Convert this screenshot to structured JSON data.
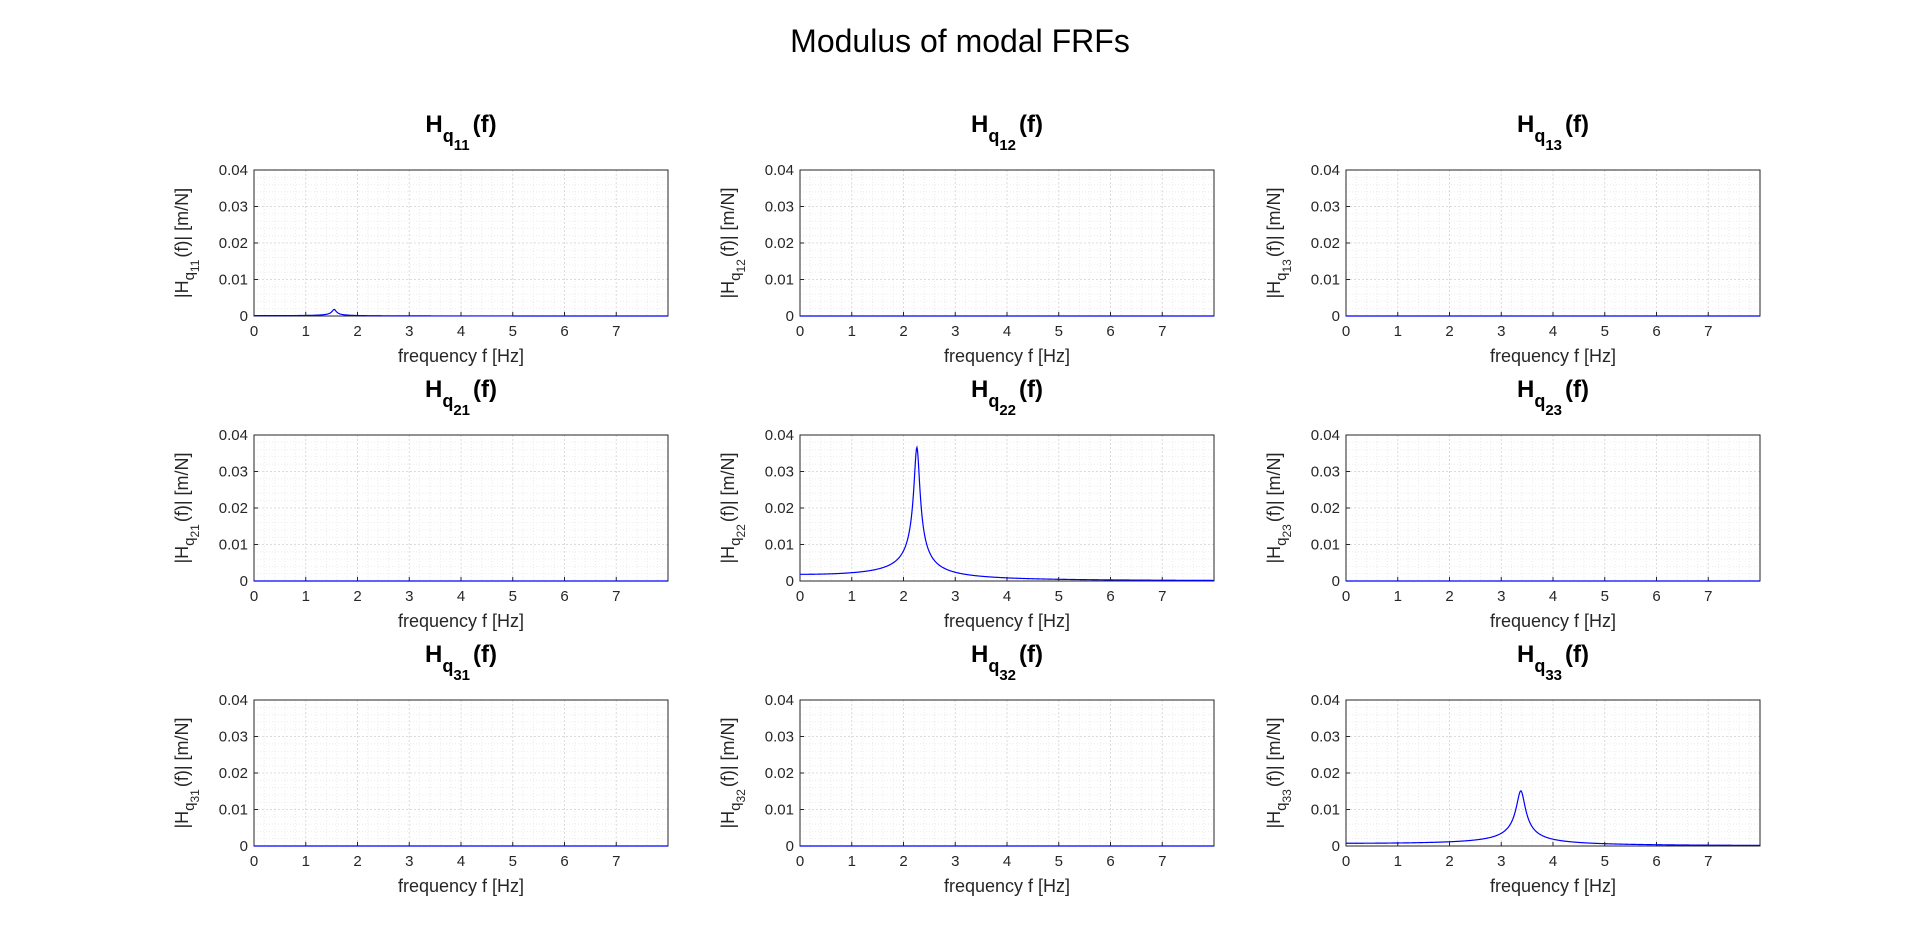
{
  "figure_title": "Modulus of modal FRFs",
  "chart_data": {
    "type": "line",
    "layout": "3x3 grid of subplots",
    "line_color": "#0000ff",
    "grid": "major and minor",
    "subplots": [
      {
        "id": "11",
        "title_main": "H",
        "title_sub1": "q",
        "title_sub2": "11",
        "title_tail": "(f)",
        "xlabel": "frequency f [Hz]",
        "ylabel_main": "|H",
        "ylabel_sub1": "q",
        "ylabel_sub2": "11",
        "ylabel_tail": "(f)|   [m/N]",
        "xlim": [
          0,
          8
        ],
        "ylim": [
          0,
          0.04
        ],
        "xticks": [
          "0",
          "1",
          "2",
          "3",
          "4",
          "5",
          "6",
          "7"
        ],
        "yticks": [
          "0",
          "0.01",
          "0.02",
          "0.03",
          "0.04"
        ],
        "peak_freq": 1.55,
        "peak_value": 0.0018,
        "base_value": 0.0001,
        "width": 0.05
      },
      {
        "id": "12",
        "title_main": "H",
        "title_sub1": "q",
        "title_sub2": "12",
        "title_tail": "(f)",
        "xlabel": "frequency f [Hz]",
        "ylabel_main": "|H",
        "ylabel_sub1": "q",
        "ylabel_sub2": "12",
        "ylabel_tail": "(f)|   [m/N]",
        "xlim": [
          0,
          8
        ],
        "ylim": [
          0,
          0.04
        ],
        "xticks": [
          "0",
          "1",
          "2",
          "3",
          "4",
          "5",
          "6",
          "7"
        ],
        "yticks": [
          "0",
          "0.01",
          "0.02",
          "0.03",
          "0.04"
        ],
        "peak_freq": 0,
        "peak_value": 0,
        "base_value": 0,
        "width": 0.05
      },
      {
        "id": "13",
        "title_main": "H",
        "title_sub1": "q",
        "title_sub2": "13",
        "title_tail": "(f)",
        "xlabel": "frequency f [Hz]",
        "ylabel_main": "|H",
        "ylabel_sub1": "q",
        "ylabel_sub2": "13",
        "ylabel_tail": "(f)|   [m/N]",
        "xlim": [
          0,
          8
        ],
        "ylim": [
          0,
          0.04
        ],
        "xticks": [
          "0",
          "1",
          "2",
          "3",
          "4",
          "5",
          "6",
          "7"
        ],
        "yticks": [
          "0",
          "0.01",
          "0.02",
          "0.03",
          "0.04"
        ],
        "peak_freq": 0,
        "peak_value": 0,
        "base_value": 0,
        "width": 0.05
      },
      {
        "id": "21",
        "title_main": "H",
        "title_sub1": "q",
        "title_sub2": "21",
        "title_tail": "(f)",
        "xlabel": "frequency f [Hz]",
        "ylabel_main": "|H",
        "ylabel_sub1": "q",
        "ylabel_sub2": "21",
        "ylabel_tail": "(f)|   [m/N]",
        "xlim": [
          0,
          8
        ],
        "ylim": [
          0,
          0.04
        ],
        "xticks": [
          "0",
          "1",
          "2",
          "3",
          "4",
          "5",
          "6",
          "7"
        ],
        "yticks": [
          "0",
          "0.01",
          "0.02",
          "0.03",
          "0.04"
        ],
        "peak_freq": 0,
        "peak_value": 0,
        "base_value": 0,
        "width": 0.05
      },
      {
        "id": "22",
        "title_main": "H",
        "title_sub1": "q",
        "title_sub2": "22",
        "title_tail": "(f)",
        "xlabel": "frequency f [Hz]",
        "ylabel_main": "|H",
        "ylabel_sub1": "q",
        "ylabel_sub2": "22",
        "ylabel_tail": "(f)|   [m/N]",
        "xlim": [
          0,
          8
        ],
        "ylim": [
          0,
          0.04
        ],
        "xticks": [
          "0",
          "1",
          "2",
          "3",
          "4",
          "5",
          "6",
          "7"
        ],
        "yticks": [
          "0",
          "0.01",
          "0.02",
          "0.03",
          "0.04"
        ],
        "peak_freq": 2.26,
        "peak_value": 0.0366,
        "base_value": 0.0012,
        "width": 0.05
      },
      {
        "id": "23",
        "title_main": "H",
        "title_sub1": "q",
        "title_sub2": "23",
        "title_tail": "(f)",
        "xlabel": "frequency f [Hz]",
        "ylabel_main": "|H",
        "ylabel_sub1": "q",
        "ylabel_sub2": "23",
        "ylabel_tail": "(f)|   [m/N]",
        "xlim": [
          0,
          8
        ],
        "ylim": [
          0,
          0.04
        ],
        "xticks": [
          "0",
          "1",
          "2",
          "3",
          "4",
          "5",
          "6",
          "7"
        ],
        "yticks": [
          "0",
          "0.01",
          "0.02",
          "0.03",
          "0.04"
        ],
        "peak_freq": 0,
        "peak_value": 0,
        "base_value": 0,
        "width": 0.05
      },
      {
        "id": "31",
        "title_main": "H",
        "title_sub1": "q",
        "title_sub2": "31",
        "title_tail": "(f)",
        "xlabel": "frequency f [Hz]",
        "ylabel_main": "|H",
        "ylabel_sub1": "q",
        "ylabel_sub2": "31",
        "ylabel_tail": "(f)|   [m/N]",
        "xlim": [
          0,
          8
        ],
        "ylim": [
          0,
          0.04
        ],
        "xticks": [
          "0",
          "1",
          "2",
          "3",
          "4",
          "5",
          "6",
          "7"
        ],
        "yticks": [
          "0",
          "0.01",
          "0.02",
          "0.03",
          "0.04"
        ],
        "peak_freq": 0,
        "peak_value": 0,
        "base_value": 0,
        "width": 0.05
      },
      {
        "id": "32",
        "title_main": "H",
        "title_sub1": "q",
        "title_sub2": "32",
        "title_tail": "(f)",
        "xlabel": "frequency f [Hz]",
        "ylabel_main": "|H",
        "ylabel_sub1": "q",
        "ylabel_sub2": "32",
        "ylabel_tail": "(f)|   [m/N]",
        "xlim": [
          0,
          8
        ],
        "ylim": [
          0,
          0.04
        ],
        "xticks": [
          "0",
          "1",
          "2",
          "3",
          "4",
          "5",
          "6",
          "7"
        ],
        "yticks": [
          "0",
          "0.01",
          "0.02",
          "0.03",
          "0.04"
        ],
        "peak_freq": 0,
        "peak_value": 0,
        "base_value": 0,
        "width": 0.05
      },
      {
        "id": "33",
        "title_main": "H",
        "title_sub1": "q",
        "title_sub2": "33",
        "title_tail": "(f)",
        "xlabel": "frequency f [Hz]",
        "ylabel_main": "|H",
        "ylabel_sub1": "q",
        "ylabel_sub2": "33",
        "ylabel_tail": "(f)|   [m/N]",
        "xlim": [
          0,
          8
        ],
        "ylim": [
          0,
          0.04
        ],
        "xticks": [
          "0",
          "1",
          "2",
          "3",
          "4",
          "5",
          "6",
          "7"
        ],
        "yticks": [
          "0",
          "0.01",
          "0.02",
          "0.03",
          "0.04"
        ],
        "peak_freq": 3.38,
        "peak_value": 0.0151,
        "base_value": 0.0001,
        "width": 0.05
      }
    ]
  }
}
